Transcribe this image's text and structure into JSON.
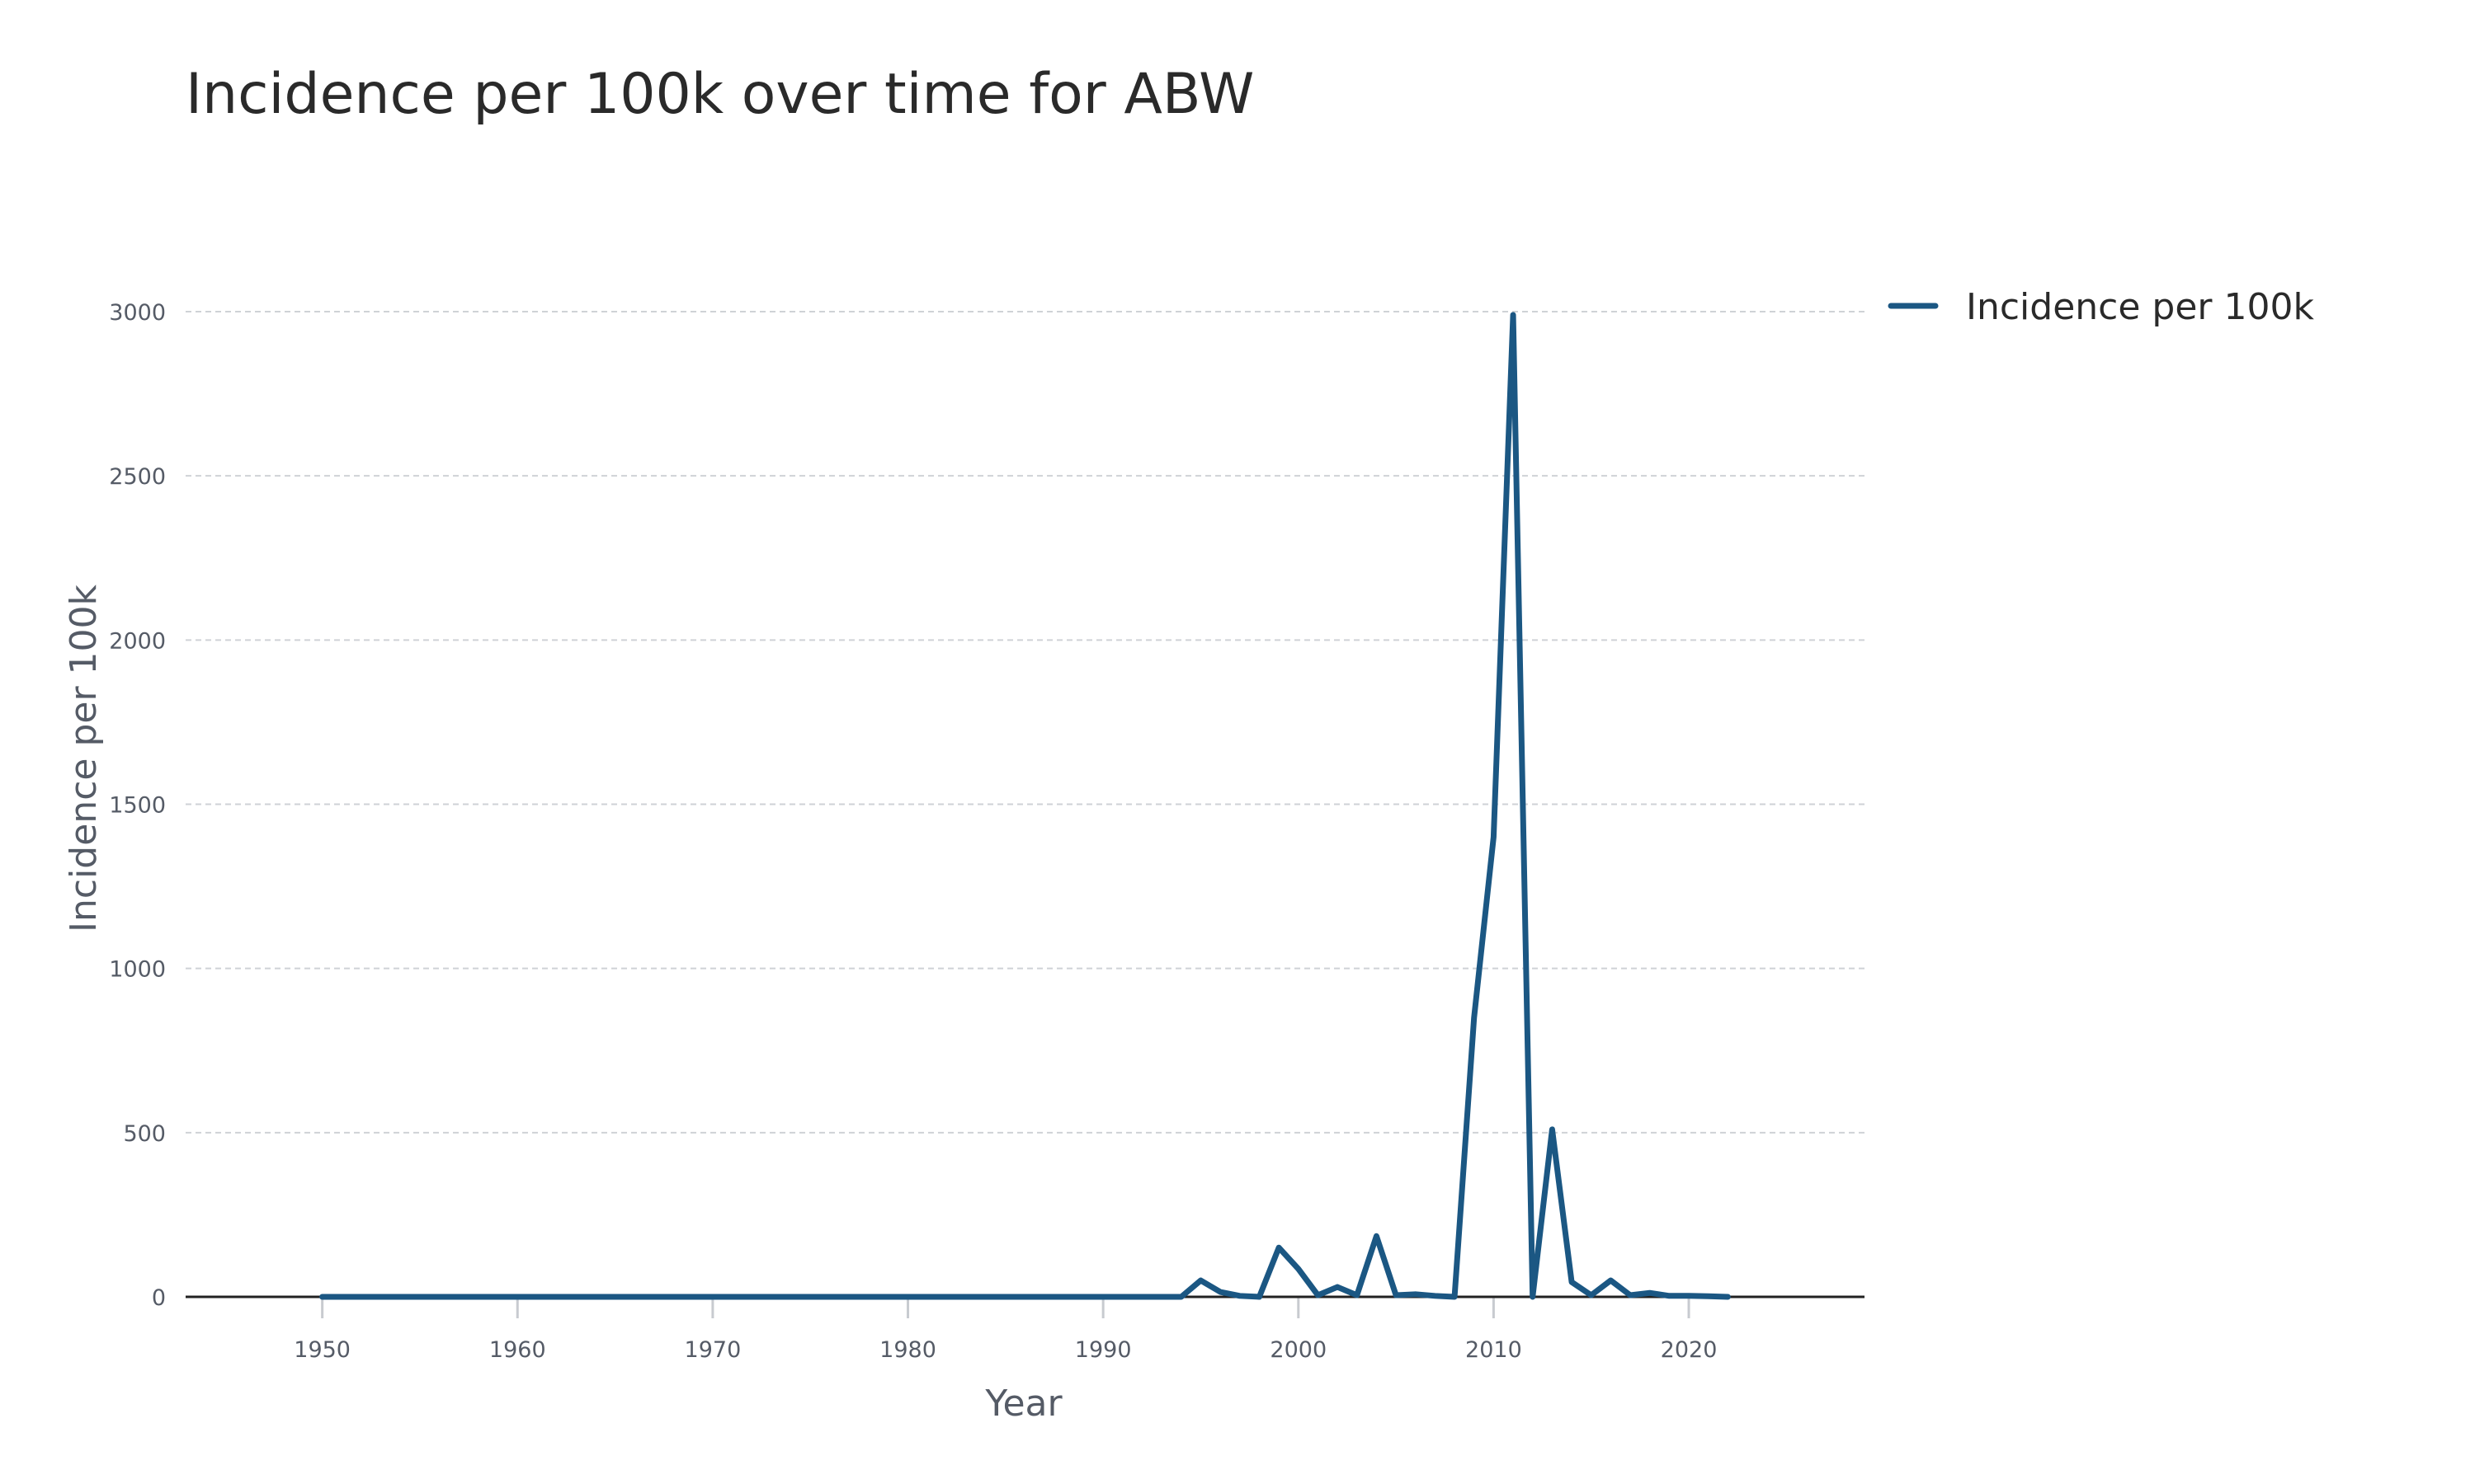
{
  "chart_data": {
    "type": "line",
    "title": "Incidence per 100k over time for ABW",
    "xlabel": "Year",
    "ylabel": "Incidence per 100k",
    "xlim": [
      1943,
      2029
    ],
    "ylim": [
      -10,
      3060
    ],
    "xticks": [
      1950,
      1960,
      1970,
      1980,
      1990,
      2000,
      2010,
      2020
    ],
    "yticks": [
      0,
      500,
      1000,
      1500,
      2000,
      2500,
      3000
    ],
    "grid": true,
    "legend_position": "top-right",
    "colors": {
      "line": "#1b5783"
    },
    "series": [
      {
        "name": "Incidence per 100k",
        "x": [
          1950,
          1951,
          1952,
          1953,
          1954,
          1955,
          1956,
          1957,
          1958,
          1959,
          1960,
          1961,
          1962,
          1963,
          1964,
          1965,
          1966,
          1967,
          1968,
          1969,
          1970,
          1971,
          1972,
          1973,
          1974,
          1975,
          1976,
          1977,
          1978,
          1979,
          1980,
          1981,
          1982,
          1983,
          1984,
          1985,
          1986,
          1987,
          1988,
          1989,
          1990,
          1991,
          1992,
          1993,
          1994,
          1995,
          1996,
          1997,
          1998,
          1999,
          2000,
          2001,
          2002,
          2003,
          2004,
          2005,
          2006,
          2007,
          2008,
          2009,
          2010,
          2011,
          2012,
          2013,
          2014,
          2015,
          2016,
          2017,
          2018,
          2019,
          2020,
          2021,
          2022
        ],
        "y": [
          0,
          0,
          0,
          0,
          0,
          0,
          0,
          0,
          0,
          0,
          0,
          0,
          0,
          0,
          0,
          0,
          0,
          0,
          0,
          0,
          0,
          0,
          0,
          0,
          0,
          0,
          0,
          0,
          0,
          0,
          0,
          0,
          0,
          0,
          0,
          0,
          0,
          0,
          0,
          0,
          0,
          0,
          0,
          0,
          0,
          50,
          15,
          3,
          0,
          150,
          85,
          5,
          30,
          5,
          185,
          5,
          8,
          3,
          0,
          850,
          1400,
          2990,
          0,
          510,
          45,
          5,
          50,
          5,
          12,
          3,
          3,
          2,
          0
        ]
      }
    ]
  }
}
